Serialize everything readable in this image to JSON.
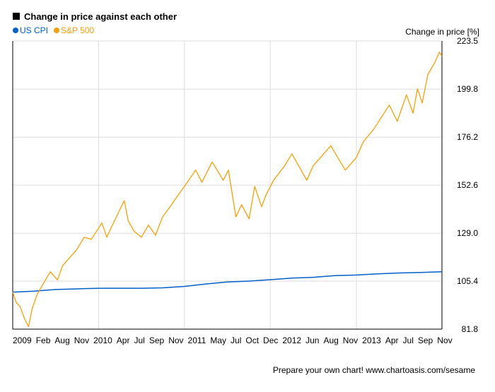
{
  "chart_data": {
    "type": "line",
    "title": "Change in price against each other",
    "ylabel": "Change in price [%]",
    "xlabel": "",
    "ylim": [
      81.8,
      223.5
    ],
    "xlim": [
      "2009-01-01",
      "2013-12-31"
    ],
    "y_ticks": [
      "81.8",
      "105.4",
      "129.0",
      "152.6",
      "176.2",
      "199.8",
      "223.5"
    ],
    "x_ticks": [
      {
        "date": "2009-01-01",
        "label": "2009"
      },
      {
        "date": "2009-02-01",
        "label": "Feb"
      },
      {
        "date": "2009-04-01",
        "label": "Aug"
      },
      {
        "date": "2009-05-01",
        "label": "Nov"
      },
      {
        "date": "2009-06-01",
        "label": "2010"
      },
      {
        "date": "2010-04-01",
        "label": "Apr"
      },
      {
        "date": "2010-07-01",
        "label": "Jul"
      },
      {
        "date": "2010-09-01",
        "label": "Sep"
      },
      {
        "date": "2010-11-01",
        "label": "Nov"
      },
      {
        "date": "2011-01-01",
        "label": "2011"
      },
      {
        "date": "2011-05-01",
        "label": "May"
      },
      {
        "date": "2011-07-01",
        "label": "Jul"
      },
      {
        "date": "2011-10-01",
        "label": "Oct"
      },
      {
        "date": "2011-12-01",
        "label": "Dec"
      },
      {
        "date": "2012-01-01",
        "label": "2012"
      },
      {
        "date": "2012-06-01",
        "label": "Jun"
      },
      {
        "date": "2012-08-01",
        "label": "Aug"
      },
      {
        "date": "2012-11-01",
        "label": "Nov"
      },
      {
        "date": "2013-01-01",
        "label": "2013"
      },
      {
        "date": "2013-04-01",
        "label": "Apr"
      },
      {
        "date": "2013-07-01",
        "label": "Jul"
      },
      {
        "date": "2013-09-01",
        "label": "Sep"
      },
      {
        "date": "2013-11-01",
        "label": "Nov"
      }
    ],
    "vertical_grid_dates": [
      "2010-01-01",
      "2011-01-01",
      "2012-01-01",
      "2013-01-01"
    ],
    "grid": true,
    "legend_position": "top-left",
    "series": [
      {
        "name": "US CPI",
        "color": "#0060c8",
        "points": [
          [
            "2009-01-01",
            100.0
          ],
          [
            "2009-04-01",
            100.5
          ],
          [
            "2009-07-01",
            101.3
          ],
          [
            "2009-10-01",
            101.6
          ],
          [
            "2010-01-01",
            101.9
          ],
          [
            "2010-04-01",
            101.9
          ],
          [
            "2010-07-01",
            101.9
          ],
          [
            "2010-10-01",
            102.1
          ],
          [
            "2011-01-01",
            102.8
          ],
          [
            "2011-04-01",
            104.0
          ],
          [
            "2011-07-01",
            105.0
          ],
          [
            "2011-10-01",
            105.4
          ],
          [
            "2012-01-01",
            106.1
          ],
          [
            "2012-04-01",
            106.9
          ],
          [
            "2012-07-01",
            107.3
          ],
          [
            "2012-10-01",
            108.1
          ],
          [
            "2013-01-01",
            108.4
          ],
          [
            "2013-04-01",
            109.0
          ],
          [
            "2013-07-01",
            109.4
          ],
          [
            "2013-10-01",
            109.7
          ],
          [
            "2013-12-31",
            110.0
          ]
        ]
      },
      {
        "name": "S&P 500",
        "color": "#f5a00f",
        "points": [
          [
            "2009-01-01",
            100.0
          ],
          [
            "2009-01-15",
            95.0
          ],
          [
            "2009-02-01",
            93.0
          ],
          [
            "2009-02-20",
            87.0
          ],
          [
            "2009-03-09",
            83.0
          ],
          [
            "2009-03-25",
            92.0
          ],
          [
            "2009-04-15",
            99.0
          ],
          [
            "2009-05-15",
            105.0
          ],
          [
            "2009-06-10",
            110.0
          ],
          [
            "2009-07-10",
            106.0
          ],
          [
            "2009-08-01",
            113.0
          ],
          [
            "2009-09-01",
            117.0
          ],
          [
            "2009-10-01",
            121.0
          ],
          [
            "2009-11-01",
            127.0
          ],
          [
            "2009-12-01",
            126.0
          ],
          [
            "2010-01-15",
            134.0
          ],
          [
            "2010-02-05",
            127.0
          ],
          [
            "2010-03-01",
            133.0
          ],
          [
            "2010-04-20",
            145.0
          ],
          [
            "2010-05-07",
            135.0
          ],
          [
            "2010-06-01",
            130.0
          ],
          [
            "2010-07-02",
            127.0
          ],
          [
            "2010-08-01",
            133.0
          ],
          [
            "2010-08-31",
            128.0
          ],
          [
            "2010-09-30",
            137.0
          ],
          [
            "2010-11-01",
            142.0
          ],
          [
            "2010-12-01",
            147.0
          ],
          [
            "2011-01-01",
            152.0
          ],
          [
            "2011-02-18",
            160.0
          ],
          [
            "2011-03-16",
            154.0
          ],
          [
            "2011-04-29",
            164.0
          ],
          [
            "2011-06-15",
            155.0
          ],
          [
            "2011-07-07",
            160.0
          ],
          [
            "2011-08-08",
            137.0
          ],
          [
            "2011-09-01",
            143.0
          ],
          [
            "2011-10-03",
            136.0
          ],
          [
            "2011-10-27",
            152.0
          ],
          [
            "2011-11-25",
            142.0
          ],
          [
            "2011-12-15",
            148.0
          ],
          [
            "2012-01-15",
            155.0
          ],
          [
            "2012-03-01",
            162.0
          ],
          [
            "2012-04-02",
            168.0
          ],
          [
            "2012-06-04",
            155.0
          ],
          [
            "2012-07-01",
            162.0
          ],
          [
            "2012-09-14",
            172.0
          ],
          [
            "2012-11-15",
            160.0
          ],
          [
            "2012-12-31",
            166.0
          ],
          [
            "2013-01-31",
            174.0
          ],
          [
            "2013-03-15",
            180.0
          ],
          [
            "2013-05-21",
            192.0
          ],
          [
            "2013-06-24",
            184.0
          ],
          [
            "2013-08-02",
            197.0
          ],
          [
            "2013-08-30",
            188.0
          ],
          [
            "2013-09-18",
            200.0
          ],
          [
            "2013-10-08",
            193.0
          ],
          [
            "2013-11-01",
            207.0
          ],
          [
            "2013-12-01",
            213.0
          ],
          [
            "2013-12-20",
            218.0
          ],
          [
            "2013-12-31",
            216.0
          ]
        ]
      }
    ]
  },
  "footer_text": "Prepare your own chart! www.chartoasis.com/sesame"
}
